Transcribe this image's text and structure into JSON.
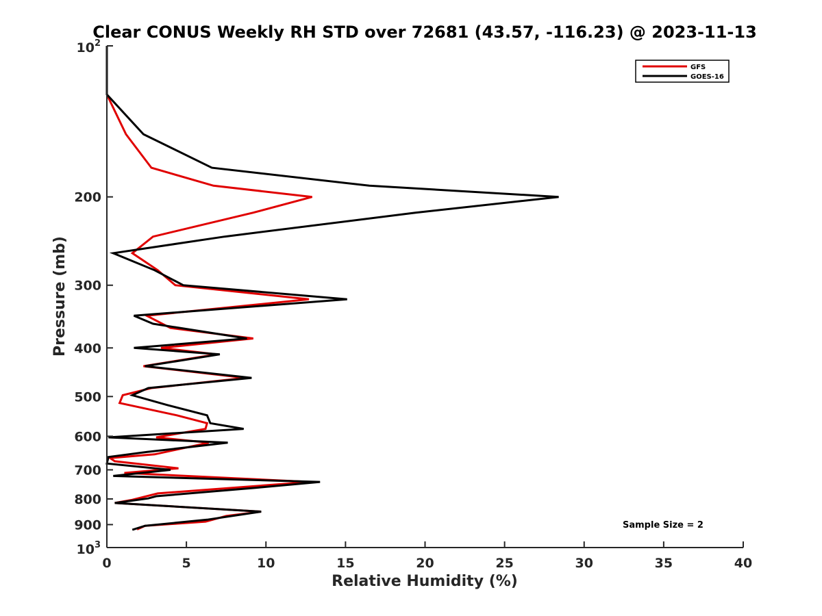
{
  "chart_data": {
    "type": "line",
    "title": "Clear CONUS Weekly RH STD over 72681 (43.57, -116.23) @ 2023-11-13",
    "xlabel": "Relative Humidity (%)",
    "ylabel": "Pressure (mb)",
    "xlim": [
      0,
      40
    ],
    "ylim": [
      100,
      1000
    ],
    "y_scale": "log",
    "y_reversed": true,
    "grid": false,
    "legend_position": "top-right",
    "x_ticks": [
      "0",
      "5",
      "10",
      "15",
      "20",
      "25",
      "30",
      "35",
      "40"
    ],
    "y_ticks": [
      {
        "value": 200,
        "label": "200"
      },
      {
        "value": 300,
        "label": "300"
      },
      {
        "value": 400,
        "label": "400"
      },
      {
        "value": 500,
        "label": "500"
      },
      {
        "value": 600,
        "label": "600"
      },
      {
        "value": 700,
        "label": "700"
      },
      {
        "value": 800,
        "label": "800"
      },
      {
        "value": 900,
        "label": "900"
      }
    ],
    "y_edge_ticks": [
      {
        "value": 100,
        "base": "10",
        "exp": "2"
      },
      {
        "value": 1000,
        "base": "10",
        "exp": "3"
      }
    ],
    "series": [
      {
        "name": "GFS",
        "color": "#e00000",
        "points": [
          [
            0.0,
            100
          ],
          [
            0.0,
            125
          ],
          [
            1.2,
            150
          ],
          [
            2.8,
            175
          ],
          [
            6.7,
            190
          ],
          [
            12.9,
            200
          ],
          [
            9.2,
            215
          ],
          [
            2.9,
            240
          ],
          [
            1.6,
            259
          ],
          [
            3.2,
            280
          ],
          [
            4.3,
            300
          ],
          [
            12.7,
            320
          ],
          [
            2.5,
            345
          ],
          [
            4.0,
            365
          ],
          [
            9.2,
            383
          ],
          [
            3.4,
            400
          ],
          [
            6.9,
            412
          ],
          [
            2.3,
            435
          ],
          [
            8.7,
            459
          ],
          [
            2.8,
            481
          ],
          [
            1.0,
            497
          ],
          [
            0.8,
            515
          ],
          [
            4.4,
            545
          ],
          [
            6.3,
            565
          ],
          [
            6.2,
            580
          ],
          [
            3.1,
            603
          ],
          [
            6.4,
            618
          ],
          [
            3.0,
            652
          ],
          [
            0.2,
            663
          ],
          [
            0.5,
            673
          ],
          [
            4.5,
            695
          ],
          [
            1.1,
            710
          ],
          [
            12.8,
            740
          ],
          [
            3.2,
            780
          ],
          [
            1.6,
            803
          ],
          [
            0.5,
            815
          ],
          [
            9.7,
            848
          ],
          [
            7.5,
            865
          ],
          [
            6.2,
            888
          ],
          [
            2.4,
            905
          ],
          [
            1.9,
            920
          ]
        ]
      },
      {
        "name": "GOES-16",
        "color": "#000000",
        "points": [
          [
            0.0,
            100
          ],
          [
            0.0,
            125
          ],
          [
            2.3,
            150
          ],
          [
            6.6,
            175
          ],
          [
            16.5,
            190
          ],
          [
            28.4,
            200
          ],
          [
            19.4,
            215
          ],
          [
            7.4,
            240
          ],
          [
            0.4,
            259
          ],
          [
            3.0,
            280
          ],
          [
            4.8,
            300
          ],
          [
            15.1,
            320
          ],
          [
            1.7,
            345
          ],
          [
            2.9,
            358
          ],
          [
            8.8,
            383
          ],
          [
            1.7,
            400
          ],
          [
            7.1,
            412
          ],
          [
            2.4,
            435
          ],
          [
            9.1,
            459
          ],
          [
            2.6,
            481
          ],
          [
            1.6,
            497
          ],
          [
            3.8,
            520
          ],
          [
            6.3,
            545
          ],
          [
            6.5,
            565
          ],
          [
            8.6,
            580
          ],
          [
            0.1,
            603
          ],
          [
            7.6,
            618
          ],
          [
            2.5,
            645
          ],
          [
            0.1,
            660
          ],
          [
            0.0,
            680
          ],
          [
            4.0,
            700
          ],
          [
            0.4,
            720
          ],
          [
            13.4,
            740
          ],
          [
            9.4,
            760
          ],
          [
            3.1,
            790
          ],
          [
            2.6,
            798
          ],
          [
            0.5,
            815
          ],
          [
            9.7,
            848
          ],
          [
            6.3,
            880
          ],
          [
            2.4,
            905
          ],
          [
            1.6,
            922
          ]
        ]
      }
    ],
    "annotation": "Sample Size = 2"
  }
}
